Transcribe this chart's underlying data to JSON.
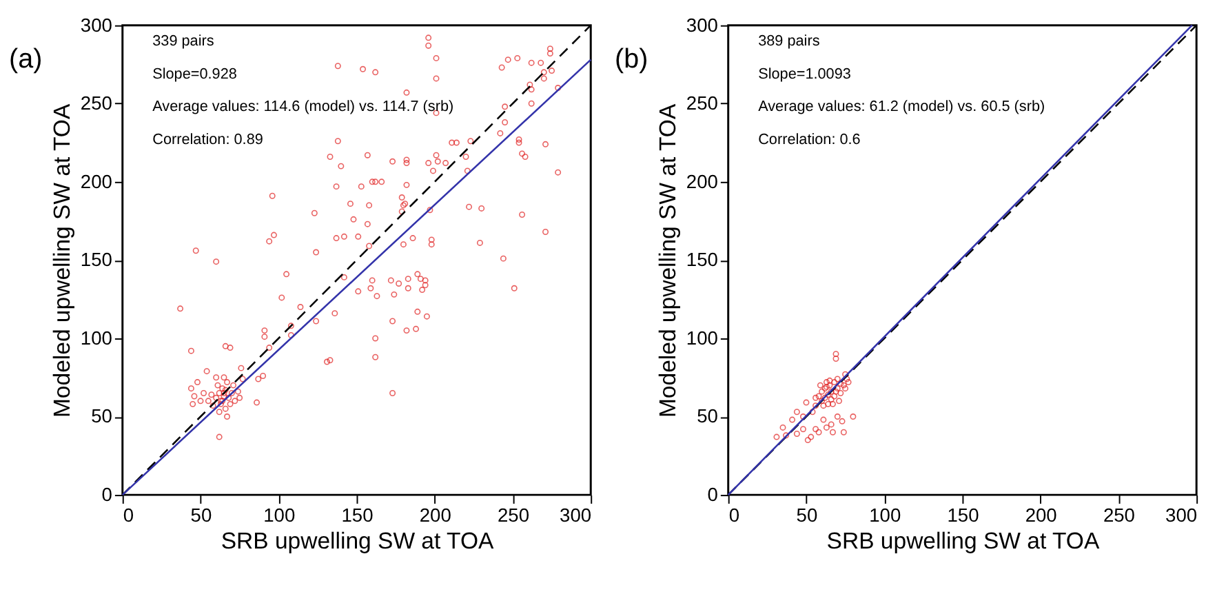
{
  "chart_data": [
    {
      "type": "scatter",
      "title": "(a)",
      "xlabel": "SRB upwelling SW at TOA",
      "ylabel": "Modeled upwelling SW at TOA",
      "xlim": [
        0,
        300
      ],
      "ylim": [
        0,
        300
      ],
      "xticks": [
        0,
        50,
        100,
        150,
        200,
        250,
        300
      ],
      "yticks": [
        0,
        50,
        100,
        150,
        200,
        250,
        300
      ],
      "grid": false,
      "annotations": [
        "339 pairs",
        "Slope=0.928",
        "Average values: 114.6 (model) vs. 114.7 (srb)",
        "Correlation: 0.89"
      ],
      "series": [
        {
          "marker": "circle",
          "color": "#e02020",
          "x": [
            196,
            196,
            201,
            138,
            154,
            162,
            201,
            182,
            201,
            243,
            247,
            253,
            262,
            268,
            274,
            274,
            275,
            270,
            270,
            261,
            262,
            262,
            279,
            245,
            245,
            242,
            211,
            214,
            223,
            254,
            254,
            271,
            256,
            258,
            279,
            220,
            221,
            207,
            201,
            202,
            196,
            199,
            182,
            182,
            173,
            138,
            133,
            157,
            140,
            137,
            160,
            162,
            166,
            153,
            182,
            179,
            180,
            181,
            179,
            146,
            158,
            96,
            123,
            148,
            157,
            197,
            222,
            230,
            256,
            271,
            97,
            94,
            137,
            142,
            151,
            124,
            158,
            180,
            186,
            198,
            198,
            229,
            244,
            47,
            60,
            105,
            142,
            160,
            172,
            177,
            183,
            189,
            191,
            194,
            194,
            192,
            183,
            159,
            151,
            163,
            174,
            102,
            114,
            136,
            189,
            195,
            251,
            37,
            124,
            173,
            188,
            182,
            108,
            108,
            91,
            91,
            162,
            94,
            66,
            69,
            44,
            131,
            133,
            162,
            76,
            90,
            87,
            77,
            54,
            86,
            173,
            62,
            45,
            48,
            44,
            46,
            60,
            62,
            64,
            65,
            66,
            63,
            68,
            70,
            61,
            67,
            58,
            55,
            72,
            69,
            64,
            66,
            62,
            57,
            71,
            74,
            65,
            60,
            52,
            50,
            75,
            67,
            63,
            65
          ],
          "values": [
            292,
            287,
            279,
            274,
            272,
            270,
            266,
            257,
            244,
            273,
            278,
            279,
            276,
            276,
            285,
            282,
            271,
            270,
            266,
            262,
            259,
            250,
            260,
            248,
            238,
            231,
            225,
            225,
            226,
            227,
            225,
            224,
            218,
            216,
            206,
            216,
            207,
            212,
            217,
            213,
            212,
            207,
            214,
            212,
            213,
            226,
            216,
            217,
            210,
            197,
            200,
            200,
            200,
            197,
            198,
            190,
            185,
            186,
            181,
            186,
            185,
            191,
            180,
            176,
            173,
            182,
            184,
            183,
            179,
            168,
            166,
            162,
            164,
            165,
            165,
            155,
            159,
            160,
            164,
            160,
            163,
            161,
            151,
            156,
            149,
            141,
            139,
            137,
            137,
            135,
            138,
            141,
            138,
            137,
            134,
            131,
            132,
            132,
            130,
            127,
            128,
            126,
            120,
            116,
            117,
            114,
            132,
            119,
            111,
            111,
            106,
            105,
            108,
            102,
            105,
            101,
            100,
            94,
            95,
            94,
            92,
            85,
            86,
            88,
            81,
            76,
            74,
            74,
            79,
            59,
            65,
            37,
            58,
            72,
            68,
            63,
            62,
            65,
            60,
            63,
            67,
            58,
            62,
            65,
            70,
            72,
            57,
            60,
            60,
            58,
            68,
            55,
            53,
            64,
            70,
            66,
            75,
            75,
            65,
            60,
            62,
            50,
            60,
            65
          ]
        },
        {
          "type": "line",
          "color": "#000000",
          "line_style": "dashed",
          "x": [
            0,
            300
          ],
          "values": [
            0,
            300
          ]
        },
        {
          "type": "line",
          "color": "#3333aa",
          "line_style": "solid",
          "x": [
            0,
            300
          ],
          "values": [
            0,
            278
          ]
        }
      ]
    },
    {
      "type": "scatter",
      "title": "(b)",
      "xlabel": "SRB upwelling SW at TOA",
      "ylabel": "Modeled upwelling SW at TOA",
      "xlim": [
        0,
        300
      ],
      "ylim": [
        0,
        300
      ],
      "xticks": [
        0,
        50,
        100,
        150,
        200,
        250,
        300
      ],
      "yticks": [
        0,
        50,
        100,
        150,
        200,
        250,
        300
      ],
      "grid": false,
      "annotations": [
        "389 pairs",
        "Slope=1.0093",
        "Average values: 61.2 (model) vs. 60.5 (srb)",
        "Correlation: 0.6"
      ],
      "series": [
        {
          "marker": "circle",
          "color": "#e02020",
          "x": [
            69,
            69,
            75,
            76,
            31,
            37,
            44,
            48,
            51,
            53,
            56,
            58,
            63,
            66,
            67,
            73,
            74,
            80,
            70,
            44,
            48,
            54,
            56,
            50,
            35,
            41,
            61,
            60,
            62,
            64,
            66,
            62,
            65,
            68,
            70,
            72,
            60,
            63,
            66,
            58,
            70,
            74,
            67,
            64,
            61,
            68,
            72,
            75,
            56,
            69,
            65,
            63,
            59,
            71,
            77
          ],
          "values": [
            90,
            87,
            77,
            74,
            37,
            38,
            39,
            42,
            35,
            37,
            42,
            40,
            43,
            45,
            40,
            47,
            40,
            50,
            50,
            53,
            50,
            53,
            57,
            59,
            43,
            48,
            48,
            60,
            62,
            64,
            66,
            68,
            70,
            72,
            68,
            65,
            66,
            72,
            61,
            63,
            74,
            70,
            58,
            58,
            57,
            63,
            71,
            68,
            62,
            66,
            73,
            69,
            70,
            60,
            72
          ]
        },
        {
          "type": "line",
          "color": "#000000",
          "line_style": "dashed",
          "x": [
            0,
            300
          ],
          "values": [
            0,
            300
          ]
        },
        {
          "type": "line",
          "color": "#3333aa",
          "line_style": "solid",
          "x": [
            0,
            297.2
          ],
          "values": [
            0,
            300
          ]
        }
      ]
    }
  ]
}
